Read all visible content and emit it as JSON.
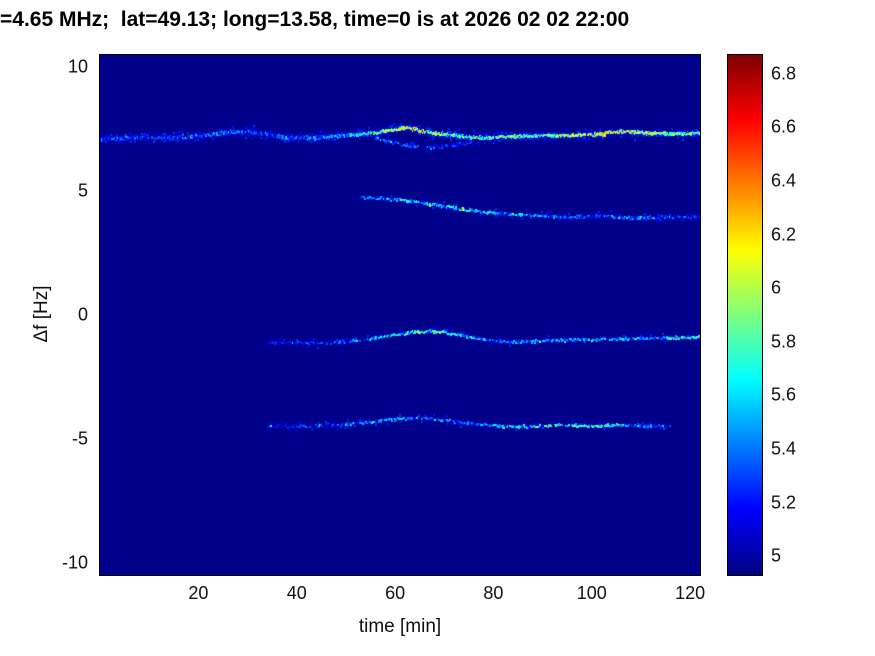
{
  "chart_data": {
    "type": "heatmap",
    "title": "=4.65 MHz;  lat=49.13; long=13.58, time=0 is at 2026 02 02 22:00",
    "xlabel": "time [min]",
    "ylabel": "Δf [Hz]",
    "xlim": [
      0,
      122
    ],
    "ylim": [
      -10.5,
      10.5
    ],
    "clim": [
      4.93,
      6.87
    ],
    "colormap": "jet",
    "legend_position": "colorbar-right",
    "grid": false,
    "x_ticks": [
      {
        "value": 20,
        "label": "20"
      },
      {
        "value": 40,
        "label": "40"
      },
      {
        "value": 60,
        "label": "60"
      },
      {
        "value": 80,
        "label": "80"
      },
      {
        "value": 100,
        "label": "100"
      },
      {
        "value": 120,
        "label": "120"
      }
    ],
    "y_ticks": [
      {
        "value": 10,
        "label": "10"
      },
      {
        "value": 5,
        "label": "5"
      },
      {
        "value": 0,
        "label": "0"
      },
      {
        "value": -5,
        "label": "-5"
      },
      {
        "value": -10,
        "label": "-10"
      }
    ],
    "colorbar_ticks": [
      {
        "value": 5.0,
        "label": "5"
      },
      {
        "value": 5.2,
        "label": "5.2"
      },
      {
        "value": 5.4,
        "label": "5.4"
      },
      {
        "value": 5.6,
        "label": "5.6"
      },
      {
        "value": 5.8,
        "label": "5.8"
      },
      {
        "value": 6.0,
        "label": "6"
      },
      {
        "value": 6.2,
        "label": "6.2"
      },
      {
        "value": 6.4,
        "label": "6.4"
      },
      {
        "value": 6.6,
        "label": "6.6"
      },
      {
        "value": 6.8,
        "label": "6.8"
      }
    ],
    "background_value": 4.95,
    "traces": [
      {
        "name": "main-doppler-trace",
        "path": [
          [
            0,
            7.1
          ],
          [
            8,
            7.15
          ],
          [
            15,
            7.15
          ],
          [
            22,
            7.25
          ],
          [
            27,
            7.4
          ],
          [
            32,
            7.35
          ],
          [
            38,
            7.15
          ],
          [
            44,
            7.15
          ],
          [
            50,
            7.25
          ],
          [
            56,
            7.35
          ],
          [
            60,
            7.5
          ],
          [
            63,
            7.55
          ],
          [
            66,
            7.4
          ],
          [
            70,
            7.3
          ],
          [
            74,
            7.2
          ],
          [
            78,
            7.15
          ],
          [
            84,
            7.2
          ],
          [
            90,
            7.25
          ],
          [
            96,
            7.25
          ],
          [
            102,
            7.3
          ],
          [
            106,
            7.4
          ],
          [
            111,
            7.35
          ],
          [
            116,
            7.3
          ],
          [
            122,
            7.35
          ]
        ],
        "intensity": [
          [
            0,
            5.15
          ],
          [
            15,
            5.2
          ],
          [
            25,
            5.3
          ],
          [
            35,
            5.2
          ],
          [
            45,
            5.35
          ],
          [
            52,
            5.5
          ],
          [
            57,
            5.8
          ],
          [
            62,
            6.0
          ],
          [
            66,
            6.05
          ],
          [
            70,
            5.85
          ],
          [
            75,
            5.7
          ],
          [
            80,
            5.8
          ],
          [
            86,
            5.75
          ],
          [
            92,
            5.85
          ],
          [
            98,
            5.95
          ],
          [
            104,
            6.05
          ],
          [
            109,
            6.0
          ],
          [
            114,
            5.95
          ],
          [
            119,
            5.85
          ],
          [
            122,
            5.75
          ]
        ],
        "step": 0.08,
        "prob": 0.95,
        "y_jitter": 0.09,
        "halo_prob": 0.75,
        "halo_jitter": 0.26,
        "value_jitter": 0.3
      },
      {
        "name": "fork-trace",
        "path": [
          [
            56,
            7.15
          ],
          [
            60,
            6.95
          ],
          [
            64,
            6.8
          ],
          [
            68,
            6.75
          ],
          [
            72,
            6.85
          ],
          [
            76,
            7.0
          ]
        ],
        "intensity": [
          [
            56,
            5.3
          ],
          [
            62,
            5.35
          ],
          [
            68,
            5.3
          ],
          [
            76,
            5.2
          ]
        ],
        "step": 0.12,
        "prob": 0.45,
        "y_jitter": 0.08,
        "halo_prob": 0.3,
        "halo_jitter": 0.18,
        "value_jitter": 0.2
      },
      {
        "name": "second-trace",
        "path": [
          [
            53,
            4.75
          ],
          [
            58,
            4.7
          ],
          [
            63,
            4.6
          ],
          [
            68,
            4.45
          ],
          [
            73,
            4.3
          ],
          [
            78,
            4.15
          ],
          [
            84,
            4.05
          ],
          [
            90,
            4.0
          ],
          [
            96,
            3.95
          ],
          [
            102,
            4.0
          ],
          [
            108,
            3.9
          ],
          [
            114,
            3.95
          ],
          [
            122,
            3.95
          ]
        ],
        "intensity": [
          [
            53,
            5.3
          ],
          [
            60,
            5.5
          ],
          [
            66,
            5.6
          ],
          [
            72,
            5.55
          ],
          [
            78,
            5.55
          ],
          [
            84,
            5.45
          ],
          [
            90,
            5.35
          ],
          [
            96,
            5.3
          ],
          [
            102,
            5.25
          ],
          [
            108,
            5.3
          ],
          [
            114,
            5.25
          ],
          [
            122,
            5.2
          ]
        ],
        "step": 0.12,
        "prob": 0.6,
        "y_jitter": 0.08,
        "halo_prob": 0.35,
        "halo_jitter": 0.2,
        "value_jitter": 0.25
      },
      {
        "name": "third-trace",
        "path": [
          [
            34,
            -1.15
          ],
          [
            40,
            -1.1
          ],
          [
            46,
            -1.15
          ],
          [
            52,
            -1.05
          ],
          [
            57,
            -0.9
          ],
          [
            62,
            -0.75
          ],
          [
            66,
            -0.65
          ],
          [
            70,
            -0.7
          ],
          [
            74,
            -0.85
          ],
          [
            78,
            -1.0
          ],
          [
            84,
            -1.1
          ],
          [
            90,
            -1.05
          ],
          [
            96,
            -1.0
          ],
          [
            102,
            -1.0
          ],
          [
            108,
            -0.95
          ],
          [
            114,
            -0.95
          ],
          [
            122,
            -0.9
          ]
        ],
        "intensity": [
          [
            34,
            5.1
          ],
          [
            45,
            5.15
          ],
          [
            54,
            5.35
          ],
          [
            60,
            5.6
          ],
          [
            65,
            5.7
          ],
          [
            70,
            5.6
          ],
          [
            76,
            5.45
          ],
          [
            82,
            5.35
          ],
          [
            88,
            5.4
          ],
          [
            94,
            5.5
          ],
          [
            100,
            5.45
          ],
          [
            106,
            5.5
          ],
          [
            112,
            5.45
          ],
          [
            118,
            5.65
          ],
          [
            122,
            5.6
          ]
        ],
        "step": 0.12,
        "prob": 0.6,
        "y_jitter": 0.08,
        "halo_prob": 0.35,
        "halo_jitter": 0.2,
        "value_jitter": 0.25
      },
      {
        "name": "fourth-trace",
        "path": [
          [
            34,
            -4.5
          ],
          [
            42,
            -4.5
          ],
          [
            48,
            -4.45
          ],
          [
            54,
            -4.35
          ],
          [
            60,
            -4.2
          ],
          [
            64,
            -4.15
          ],
          [
            68,
            -4.2
          ],
          [
            72,
            -4.3
          ],
          [
            76,
            -4.4
          ],
          [
            82,
            -4.5
          ],
          [
            88,
            -4.5
          ],
          [
            94,
            -4.45
          ],
          [
            100,
            -4.5
          ],
          [
            106,
            -4.45
          ],
          [
            112,
            -4.5
          ],
          [
            116,
            -4.5
          ]
        ],
        "intensity": [
          [
            34,
            5.1
          ],
          [
            44,
            5.2
          ],
          [
            52,
            5.35
          ],
          [
            58,
            5.5
          ],
          [
            64,
            5.5
          ],
          [
            70,
            5.4
          ],
          [
            76,
            5.35
          ],
          [
            82,
            5.55
          ],
          [
            88,
            5.75
          ],
          [
            94,
            5.7
          ],
          [
            100,
            5.75
          ],
          [
            105,
            5.6
          ],
          [
            110,
            5.4
          ],
          [
            116,
            5.2
          ]
        ],
        "step": 0.12,
        "prob": 0.55,
        "y_jitter": 0.08,
        "halo_prob": 0.3,
        "halo_jitter": 0.2,
        "value_jitter": 0.25
      }
    ]
  }
}
